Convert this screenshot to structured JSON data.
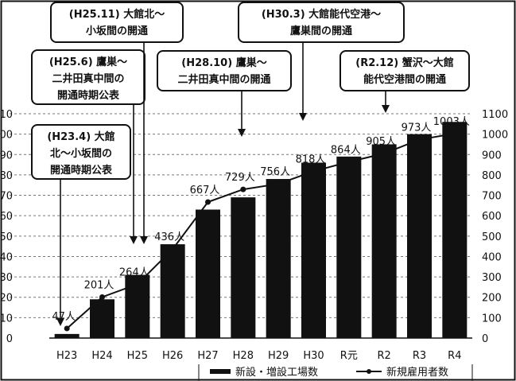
{
  "chart_data": {
    "type": "bar",
    "categories": [
      "H23",
      "H24",
      "H25",
      "H26",
      "H27",
      "H28",
      "H29",
      "H30",
      "R元",
      "R2",
      "R3",
      "R4"
    ],
    "series": [
      {
        "name": "新設・増設工場数",
        "type": "bar",
        "axis": "left",
        "color": "#111111",
        "values": [
          2,
          19,
          31,
          46,
          63,
          69,
          78,
          86,
          89,
          95,
          100,
          106
        ]
      },
      {
        "name": "新規雇用者数",
        "type": "line",
        "axis": "right",
        "color": "#111111",
        "values": [
          47,
          201,
          264,
          436,
          667,
          729,
          756,
          818,
          864,
          905,
          973,
          1003
        ],
        "labels": [
          "47人",
          "201人",
          "264人",
          "436人",
          "667人",
          "729人",
          "756人",
          "818人",
          "864人",
          "905人",
          "973人",
          "1003人"
        ]
      }
    ],
    "y_left": {
      "ticks": [
        "0",
        "10",
        "20",
        "30",
        "40",
        "50",
        "60",
        "70",
        "80",
        "90",
        "100",
        "110"
      ],
      "lim": [
        0,
        110
      ]
    },
    "y_right": {
      "ticks": [
        "0",
        "100",
        "200",
        "300",
        "400",
        "500",
        "600",
        "700",
        "800",
        "900",
        "1000",
        "1100"
      ],
      "lim": [
        0,
        1100
      ]
    },
    "grid": true,
    "legend_position": "bottom",
    "annotations": [
      {
        "lines": [
          "(H23.4) 大館",
          "北～小坂間の",
          "開通時期公表"
        ],
        "target": "H23"
      },
      {
        "lines": [
          "(H25.6) 鷹巣～",
          "二井田真中間の",
          "開通時期公表"
        ],
        "target": "H25"
      },
      {
        "lines": [
          "(H25.11) 大館北～",
          "小坂間の開通"
        ],
        "target": "H25"
      },
      {
        "lines": [
          "(H28.10) 鷹巣～",
          "二井田真中間の開通"
        ],
        "target": "H28"
      },
      {
        "lines": [
          "(H30.3) 大館能代空港～",
          "鷹巣間の開通"
        ],
        "target": "H30"
      },
      {
        "lines": [
          "(R2.12) 蟹沢～大館",
          "能代空港間の開通"
        ],
        "target": "R2"
      }
    ]
  }
}
